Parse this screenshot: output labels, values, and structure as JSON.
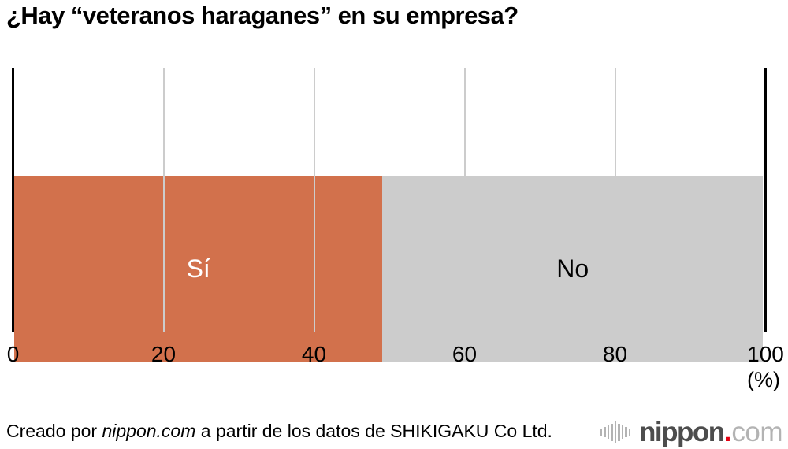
{
  "title": "¿Hay “veteranos haraganes” en su empresa?",
  "chart_data": {
    "type": "bar",
    "subtype": "horizontal-stacked-percentage",
    "title": "¿Hay “veteranos haraganes” en su empresa?",
    "categories": [
      "Sí",
      "No"
    ],
    "series": [
      {
        "name": "Sí",
        "value": 49.2,
        "color": "#D2714C",
        "label_color": "#FFFFFF"
      },
      {
        "name": "No",
        "value": 50.8,
        "color": "#CCCCCC",
        "label_color": "#000000"
      }
    ],
    "xlim": [
      0,
      100
    ],
    "ticks": [
      0,
      20,
      40,
      60,
      80,
      100
    ],
    "unit_label": "(%)",
    "grid": true,
    "axis_line_color": "#000000",
    "gridline_color": "#CCCCCC",
    "legend": "labels-inside-bars"
  },
  "footer": {
    "credit": {
      "prefix": "Creado por ",
      "source": "nippon.com",
      "suffix": " a partir de los datos de SHIKIGAKU Co Ltd."
    },
    "logo": {
      "word": "nippon",
      "dot": ".",
      "tld": "com",
      "word_color": "#4D4D4D",
      "dot_color": "#E60012",
      "tld_color": "#B3B3B3",
      "icon": "soundwave-bars-icon",
      "icon_color": "#B3B3B3"
    }
  }
}
